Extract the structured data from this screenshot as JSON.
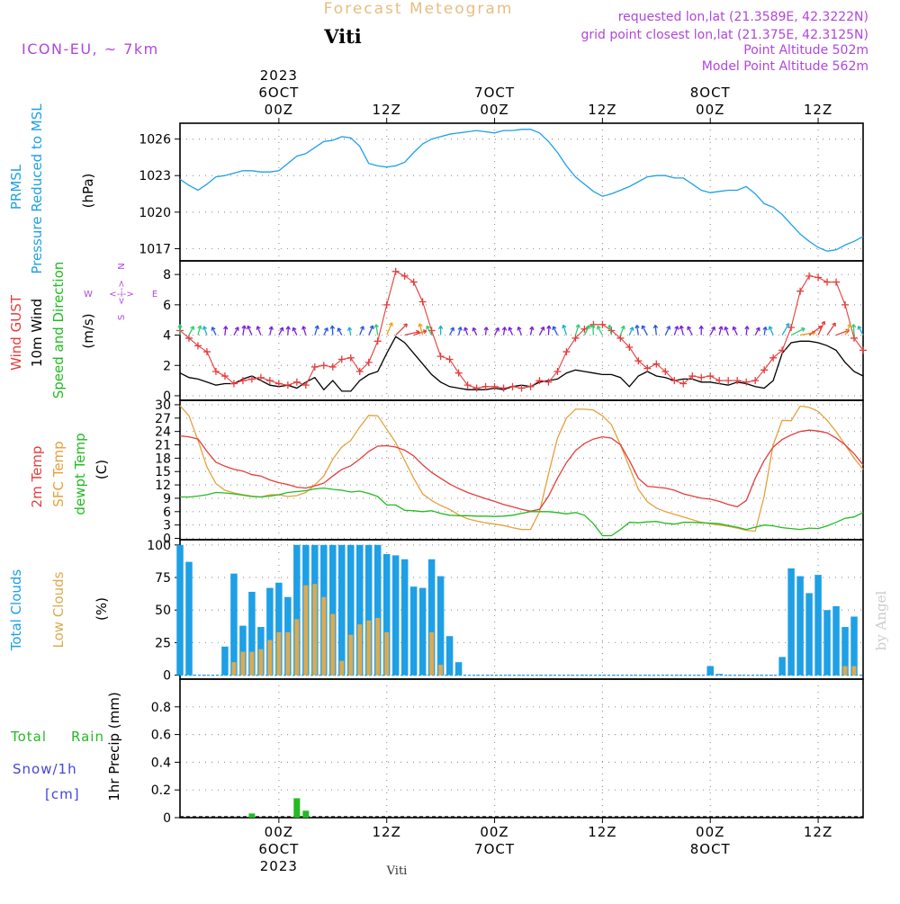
{
  "header": {
    "product_title": "Forecast Meteogram",
    "model": "ICON-EU, ~ 7km",
    "location": "Viti",
    "requested": "requested lon,lat (21.3589E, 42.3222N)",
    "grid_point": "grid point closest lon,lat (21.375E, 42.3125N)",
    "point_altitude": "Point Altitude 502m",
    "model_point_altitude": "Model Point Altitude 562m",
    "footer_location": "Viti",
    "watermark": "by Angel"
  },
  "colors": {
    "pressure": "#1ea0e6",
    "gust": "#e63c3c",
    "wind": "#000000",
    "direction": "#22bb22",
    "temp2m": "#e63c3c",
    "sfc": "#e6a03c",
    "dewpt": "#22bb22",
    "total_clouds": "#1ea0e6",
    "low_clouds": "#dcaa50",
    "rain": "#22bb22",
    "snow": "#4444dd",
    "meta": "#b046dc",
    "title": "#e6be80"
  },
  "time_axis": {
    "top_ticks": [
      {
        "t": 0,
        "lines": [
          "2023",
          "6OCT",
          "00Z"
        ]
      },
      {
        "t": 12,
        "lines": [
          "12Z"
        ]
      },
      {
        "t": 24,
        "lines": [
          "7OCT",
          "00Z"
        ]
      },
      {
        "t": 36,
        "lines": [
          "12Z"
        ]
      },
      {
        "t": 48,
        "lines": [
          "8OCT",
          "00Z"
        ]
      },
      {
        "t": 60,
        "lines": [
          "12Z"
        ]
      }
    ],
    "bottom_ticks": [
      {
        "t": 0,
        "lines": [
          "00Z",
          "6OCT",
          "2023"
        ]
      },
      {
        "t": 12,
        "lines": [
          "12Z"
        ]
      },
      {
        "t": 24,
        "lines": [
          "00Z",
          "7OCT"
        ]
      },
      {
        "t": 36,
        "lines": [
          "12Z"
        ]
      },
      {
        "t": 48,
        "lines": [
          "00Z",
          "8OCT"
        ]
      },
      {
        "t": 60,
        "lines": [
          "12Z"
        ]
      }
    ],
    "t_start": -11,
    "t_end": 65
  },
  "chart_data": [
    {
      "type": "line",
      "panel": "pressure",
      "labels": [
        "PRMSL",
        "Pressure Reduced to MSL"
      ],
      "unit": "(hPa)",
      "ylim": [
        1016,
        1027.3
      ],
      "yticks": [
        1017,
        1020,
        1023,
        1026
      ],
      "x": [
        -11,
        -10,
        -9,
        -8,
        -7,
        -6,
        -5,
        -4,
        -3,
        -2,
        -1,
        0,
        1,
        2,
        3,
        4,
        5,
        6,
        7,
        8,
        9,
        10,
        11,
        12,
        13,
        14,
        15,
        16,
        17,
        18,
        19,
        20,
        21,
        22,
        23,
        24,
        25,
        26,
        27,
        28,
        29,
        30,
        31,
        32,
        33,
        34,
        35,
        36,
        37,
        38,
        39,
        40,
        41,
        42,
        43,
        44,
        45,
        46,
        47,
        48,
        49,
        50,
        51,
        52,
        53,
        54,
        55,
        56,
        57,
        58,
        59,
        60,
        61,
        62,
        63,
        64,
        65
      ],
      "series": [
        {
          "name": "PRMSL",
          "values": [
            1022.7,
            1022.2,
            1021.8,
            1022.3,
            1022.9,
            1023.0,
            1023.2,
            1023.4,
            1023.4,
            1023.3,
            1023.3,
            1023.4,
            1024.0,
            1024.6,
            1024.8,
            1025.3,
            1025.8,
            1025.9,
            1026.2,
            1026.1,
            1025.4,
            1024.0,
            1023.8,
            1023.7,
            1023.8,
            1024.1,
            1024.9,
            1025.6,
            1026.0,
            1026.2,
            1026.4,
            1026.5,
            1026.6,
            1026.7,
            1026.6,
            1026.5,
            1026.7,
            1026.7,
            1026.8,
            1026.8,
            1026.5,
            1025.8,
            1024.9,
            1023.8,
            1022.9,
            1022.3,
            1021.7,
            1021.3,
            1021.5,
            1021.8,
            1022.1,
            1022.5,
            1022.9,
            1023.0,
            1023.0,
            1022.8,
            1022.8,
            1022.3,
            1021.8,
            1021.6,
            1021.7,
            1021.8,
            1021.8,
            1022.1,
            1021.5,
            1020.7,
            1020.4,
            1019.8,
            1019.0,
            1018.2,
            1017.6,
            1017.1,
            1016.8,
            1016.9,
            1017.3,
            1017.6,
            1018.0
          ]
        }
      ]
    },
    {
      "type": "line",
      "panel": "wind",
      "labels": [
        "Wind GUST",
        "10m Wind",
        "Speed and Direction"
      ],
      "unit": "(m/s)",
      "compass": [
        "N",
        "S",
        "W",
        "E",
        "<--->",
        "<--->"
      ],
      "ylim": [
        -0.3,
        8.9
      ],
      "yticks": [
        0,
        2,
        4,
        6,
        8
      ],
      "x": [
        -11,
        -10,
        -9,
        -8,
        -7,
        -6,
        -5,
        -4,
        -3,
        -2,
        -1,
        0,
        1,
        2,
        3,
        4,
        5,
        6,
        7,
        8,
        9,
        10,
        11,
        12,
        13,
        14,
        15,
        16,
        17,
        18,
        19,
        20,
        21,
        22,
        23,
        24,
        25,
        26,
        27,
        28,
        29,
        30,
        31,
        32,
        33,
        34,
        35,
        36,
        37,
        38,
        39,
        40,
        41,
        42,
        43,
        44,
        45,
        46,
        47,
        48,
        49,
        50,
        51,
        52,
        53,
        54,
        55,
        56,
        57,
        58,
        59,
        60,
        61,
        62,
        63,
        64,
        65
      ],
      "series": [
        {
          "name": "Wind GUST",
          "values": [
            4.3,
            3.8,
            3.3,
            2.9,
            1.6,
            1.3,
            0.8,
            1.0,
            1.1,
            1.2,
            1.0,
            0.8,
            0.7,
            0.9,
            0.7,
            1.9,
            2.0,
            1.9,
            2.4,
            2.5,
            1.6,
            2.2,
            3.6,
            6.0,
            8.2,
            7.9,
            7.5,
            6.2,
            4.3,
            2.6,
            2.4,
            1.5,
            0.7,
            0.5,
            0.6,
            0.6,
            0.5,
            0.6,
            0.5,
            0.6,
            1.0,
            0.9,
            1.6,
            2.9,
            3.8,
            4.4,
            4.7,
            4.7,
            4.3,
            3.8,
            3.2,
            2.3,
            1.8,
            2.1,
            1.6,
            1.0,
            0.8,
            1.3,
            1.2,
            1.3,
            1.0,
            1.0,
            1.0,
            0.9,
            1.0,
            1.7,
            2.5,
            3.0,
            4.5,
            6.9,
            7.9,
            7.8,
            7.5,
            7.5,
            6.0,
            3.8,
            3.0
          ]
        },
        {
          "name": "10m Wind",
          "values": [
            1.5,
            1.2,
            1.1,
            0.9,
            0.7,
            0.8,
            0.8,
            1.1,
            1.3,
            1.0,
            0.7,
            0.6,
            0.7,
            0.5,
            0.9,
            1.2,
            0.4,
            1.0,
            0.3,
            0.3,
            1.0,
            1.4,
            1.6,
            2.8,
            3.9,
            3.5,
            2.8,
            2.1,
            1.4,
            0.9,
            0.6,
            0.5,
            0.4,
            0.4,
            0.4,
            0.5,
            0.4,
            0.6,
            0.7,
            0.6,
            0.9,
            1.0,
            1.1,
            1.5,
            1.7,
            1.6,
            1.5,
            1.4,
            1.4,
            1.2,
            0.6,
            1.3,
            1.6,
            1.3,
            1.2,
            1.0,
            1.1,
            1.1,
            0.9,
            0.9,
            0.8,
            0.7,
            0.9,
            0.8,
            0.6,
            0.5,
            1.0,
            2.8,
            3.5,
            3.6,
            3.6,
            3.5,
            3.3,
            3.0,
            2.2,
            1.6,
            1.3
          ]
        }
      ]
    },
    {
      "type": "line",
      "panel": "temperature",
      "labels": [
        "2m Temp",
        "SFC Temp",
        "dewpt Temp"
      ],
      "unit": "(C)",
      "ylim": [
        -0.3,
        31.0
      ],
      "yticks": [
        0,
        3,
        6,
        9,
        12,
        15,
        18,
        21,
        24,
        27,
        30
      ],
      "x": [
        -11,
        -10,
        -9,
        -8,
        -7,
        -6,
        -5,
        -4,
        -3,
        -2,
        -1,
        0,
        1,
        2,
        3,
        4,
        5,
        6,
        7,
        8,
        9,
        10,
        11,
        12,
        13,
        14,
        15,
        16,
        17,
        18,
        19,
        20,
        21,
        22,
        23,
        24,
        25,
        26,
        27,
        28,
        29,
        30,
        31,
        32,
        33,
        34,
        35,
        36,
        37,
        38,
        39,
        40,
        41,
        42,
        43,
        44,
        45,
        46,
        47,
        48,
        49,
        50,
        51,
        52,
        53,
        54,
        55,
        56,
        57,
        58,
        59,
        60,
        61,
        62,
        63,
        64,
        65
      ],
      "series": [
        {
          "name": "2m Temp",
          "values": [
            23.0,
            22.8,
            22.3,
            19.5,
            17.1,
            16.2,
            15.5,
            15.1,
            14.3,
            14.0,
            13.1,
            12.5,
            12.1,
            11.5,
            11.3,
            11.8,
            12.4,
            14.0,
            15.5,
            16.3,
            17.8,
            19.5,
            20.7,
            20.8,
            20.5,
            19.8,
            18.5,
            16.5,
            14.8,
            13.5,
            12.2,
            11.2,
            10.3,
            9.6,
            8.9,
            8.3,
            7.6,
            7.1,
            6.5,
            6.1,
            6.5,
            9.5,
            13.5,
            17.0,
            19.7,
            21.3,
            22.3,
            22.8,
            22.5,
            21.0,
            17.5,
            13.5,
            11.7,
            11.5,
            11.3,
            10.8,
            10.0,
            9.5,
            9.0,
            8.8,
            8.3,
            7.6,
            7.1,
            8.5,
            13.5,
            17.5,
            20.5,
            22.2,
            23.2,
            24.0,
            24.3,
            24.1,
            23.7,
            22.5,
            21.0,
            19.0,
            16.5
          ]
        },
        {
          "name": "SFC Temp",
          "values": [
            29.8,
            27.5,
            22.0,
            16.0,
            12.3,
            10.8,
            10.2,
            9.8,
            9.5,
            9.3,
            9.8,
            9.8,
            9.4,
            9.6,
            10.3,
            12.0,
            14.0,
            17.8,
            20.5,
            22.0,
            25.0,
            27.6,
            27.5,
            24.5,
            21.5,
            17.5,
            13.5,
            10.0,
            8.5,
            7.4,
            6.5,
            5.3,
            4.4,
            3.9,
            3.5,
            3.2,
            2.9,
            2.4,
            2.0,
            2.0,
            6.0,
            14.5,
            22.5,
            27.0,
            29.0,
            29.0,
            28.8,
            27.5,
            25.5,
            21.0,
            16.0,
            11.0,
            8.2,
            6.8,
            6.0,
            5.4,
            4.8,
            4.2,
            3.6,
            3.3,
            3.0,
            2.7,
            2.3,
            1.8,
            1.6,
            9.5,
            21.0,
            26.5,
            26.4,
            29.7,
            29.4,
            28.5,
            26.5,
            24.0,
            21.0,
            18.0,
            15.5
          ]
        },
        {
          "name": "dewpt Temp",
          "values": [
            9.3,
            9.3,
            9.5,
            9.8,
            10.3,
            10.2,
            10.0,
            9.7,
            9.4,
            9.3,
            9.5,
            9.8,
            10.3,
            10.5,
            10.7,
            11.1,
            11.3,
            11.0,
            10.8,
            10.4,
            10.6,
            10.1,
            9.4,
            7.5,
            7.5,
            6.3,
            6.2,
            6.0,
            6.2,
            5.6,
            5.2,
            5.1,
            5.1,
            5.0,
            5.0,
            4.9,
            5.0,
            5.2,
            5.6,
            6.0,
            6.0,
            6.0,
            5.8,
            5.5,
            5.8,
            5.2,
            3.3,
            0.6,
            0.6,
            2.0,
            3.6,
            3.5,
            3.7,
            3.8,
            3.4,
            3.2,
            3.6,
            3.6,
            3.5,
            3.4,
            3.3,
            2.9,
            2.5,
            2.0,
            2.5,
            3.0,
            2.8,
            2.4,
            2.2,
            2.0,
            2.3,
            2.2,
            2.8,
            3.6,
            4.5,
            4.8,
            5.8
          ]
        }
      ]
    },
    {
      "type": "bar",
      "panel": "clouds",
      "labels": [
        "Total Clouds",
        "Low Clouds"
      ],
      "unit": "(%)",
      "ylim": [
        -3,
        104
      ],
      "yticks": [
        0,
        25,
        50,
        75,
        100
      ],
      "x": [
        -11,
        -10,
        -9,
        -8,
        -7,
        -6,
        -5,
        -4,
        -3,
        -2,
        -1,
        0,
        1,
        2,
        3,
        4,
        5,
        6,
        7,
        8,
        9,
        10,
        11,
        12,
        13,
        14,
        15,
        16,
        17,
        18,
        19,
        20,
        21,
        22,
        23,
        24,
        25,
        26,
        27,
        28,
        29,
        30,
        31,
        32,
        33,
        34,
        35,
        36,
        37,
        38,
        39,
        40,
        41,
        42,
        43,
        44,
        45,
        46,
        47,
        48,
        49,
        50,
        51,
        52,
        53,
        54,
        55,
        56,
        57,
        58,
        59,
        60,
        61,
        62,
        63,
        64,
        65
      ],
      "series": [
        {
          "name": "Total Clouds",
          "values": [
            100,
            87,
            0,
            0,
            0,
            22,
            78,
            38,
            64,
            37,
            67,
            71,
            60,
            100,
            100,
            100,
            100,
            100,
            100,
            100,
            100,
            100,
            100,
            93,
            92,
            89,
            68,
            67,
            89,
            76,
            30,
            10,
            0,
            0,
            0,
            0,
            0,
            0,
            0,
            0,
            0,
            0,
            0,
            0,
            0,
            0,
            0,
            0,
            0,
            0,
            0,
            0,
            0,
            0,
            0,
            0,
            0,
            0,
            0,
            7,
            1,
            0,
            0,
            0,
            0,
            0,
            0,
            14,
            82,
            76,
            63,
            77,
            50,
            53,
            37,
            45,
            0
          ]
        },
        {
          "name": "Low Clouds",
          "values": [
            0,
            0,
            0,
            0,
            0,
            0,
            10,
            18,
            18,
            20,
            27,
            33,
            33,
            43,
            69,
            70,
            60,
            47,
            11,
            31,
            39,
            42,
            44,
            33,
            0,
            0,
            0,
            0,
            33,
            8,
            0,
            0,
            0,
            0,
            0,
            0,
            0,
            0,
            0,
            0,
            0,
            0,
            0,
            0,
            0,
            0,
            0,
            0,
            0,
            0,
            0,
            0,
            0,
            0,
            0,
            0,
            0,
            0,
            0,
            0,
            0,
            0,
            0,
            0,
            0,
            0,
            0,
            0,
            0,
            0,
            0,
            0,
            0,
            0,
            7,
            7,
            0
          ]
        }
      ]
    },
    {
      "type": "bar",
      "panel": "precip",
      "labels": [
        "Total",
        "Rain",
        "Snow/1h",
        "[cm]",
        "1hr Precip (mm)"
      ],
      "ylim": [
        0,
        1.0
      ],
      "yticks": [
        0,
        0.2,
        0.4,
        0.6,
        0.8
      ],
      "ytick_labels": [
        "0",
        "0.2",
        "0.4",
        "0.6",
        "0.8"
      ],
      "x": [
        -3,
        2,
        3
      ],
      "series": [
        {
          "name": "Total Rain",
          "values": [
            0.03,
            0.14,
            0.05
          ]
        }
      ]
    }
  ]
}
